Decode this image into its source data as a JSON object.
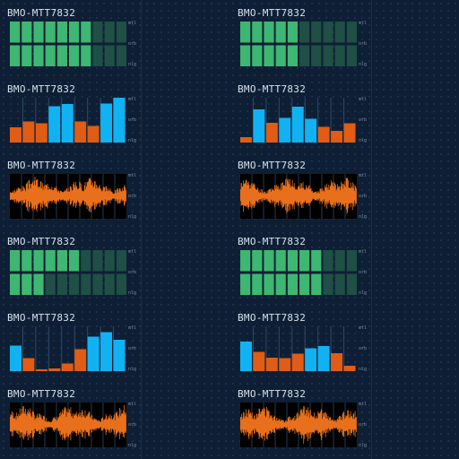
{
  "colors": {
    "background": "#0e1f35",
    "meter_on": "#3db771",
    "meter_off": "#1f4f45",
    "bar_low": "#e15c14",
    "bar_high": "#11b2f2",
    "wave": "#e8701c",
    "wave_bg": "#000000",
    "grid_line": "#2f4a66"
  },
  "scale_labels": {
    "top": "mtl",
    "mid": "orb",
    "bot": "nlg"
  },
  "panels": [
    {
      "id": "p1",
      "title": "BMO-MTT7832",
      "kind": "meter",
      "top_row_lit": 7,
      "bottom_row_lit": 7,
      "cells": 10
    },
    {
      "id": "p2",
      "title": "BMO-MTT7832",
      "kind": "bars",
      "bars": [
        0.34,
        0.47,
        0.43,
        0.81,
        0.86,
        0.47,
        0.37,
        0.87,
        1.0
      ]
    },
    {
      "id": "p3",
      "title": "BMO-MTT7832",
      "kind": "wave",
      "seed": 3
    },
    {
      "id": "p4",
      "title": "BMO-MTT7832",
      "kind": "meter",
      "top_row_lit": 6,
      "bottom_row_lit": 3,
      "cells": 10
    },
    {
      "id": "p5",
      "title": "BMO-MTT7832",
      "kind": "bars",
      "bars": [
        0.57,
        0.29,
        0.04,
        0.06,
        0.17,
        0.49,
        0.77,
        0.87,
        0.7
      ]
    },
    {
      "id": "p6",
      "title": "BMO-MTT7832",
      "kind": "wave",
      "seed": 7
    },
    {
      "id": "p7",
      "title": "BMO-MTT7832",
      "kind": "meter",
      "top_row_lit": 5,
      "bottom_row_lit": 5,
      "cells": 10
    },
    {
      "id": "p8",
      "title": "BMO-MTT7832",
      "kind": "bars",
      "bars": [
        0.12,
        0.74,
        0.44,
        0.55,
        0.8,
        0.53,
        0.35,
        0.26,
        0.43
      ]
    },
    {
      "id": "p9",
      "title": "BMO-MTT7832",
      "kind": "wave",
      "seed": 11
    },
    {
      "id": "p10",
      "title": "BMO-MTT7832",
      "kind": "meter",
      "top_row_lit": 7,
      "bottom_row_lit": 7,
      "cells": 10
    },
    {
      "id": "p11",
      "title": "BMO-MTT7832",
      "kind": "bars",
      "bars": [
        0.66,
        0.43,
        0.3,
        0.29,
        0.39,
        0.51,
        0.56,
        0.4,
        0.12
      ]
    },
    {
      "id": "p12",
      "title": "BMO-MTT7832",
      "kind": "wave",
      "seed": 13
    }
  ]
}
